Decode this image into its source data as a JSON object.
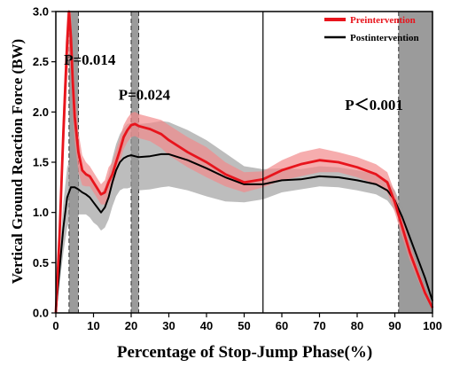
{
  "chart_data": {
    "type": "line",
    "xlabel": "Percentage of Stop-Jump Phase(%)",
    "ylabel": "Vertical Ground Reaction Force (BW)",
    "xlim": [
      0,
      100
    ],
    "ylim": [
      0,
      3.0
    ],
    "x_ticks": [
      0,
      10,
      20,
      30,
      40,
      50,
      60,
      70,
      80,
      90,
      100
    ],
    "y_ticks": [
      0.0,
      0.5,
      1.0,
      1.5,
      2.0,
      2.5,
      3.0
    ],
    "x_tick_labels": [
      "0",
      "10",
      "20",
      "30",
      "40",
      "50",
      "60",
      "70",
      "80",
      "90",
      "100"
    ],
    "y_tick_labels": [
      "0.0",
      "0.5",
      "1.0",
      "1.5",
      "2.0",
      "2.5",
      "3.0"
    ],
    "grid": false,
    "legend_position": "top-right",
    "series": [
      {
        "name": "Preintervention",
        "color": "#e8141c",
        "band_color": "#f28a8c",
        "x": [
          0,
          1,
          2,
          3,
          3.5,
          4,
          4.5,
          5,
          6,
          7,
          8,
          9,
          10,
          11,
          12,
          13,
          14,
          15,
          16,
          17,
          18,
          19,
          20,
          21,
          22,
          25,
          28,
          30,
          35,
          40,
          45,
          50,
          55,
          60,
          65,
          70,
          75,
          80,
          85,
          88,
          90,
          92,
          94,
          96,
          98,
          100
        ],
        "y": [
          0.0,
          0.8,
          1.8,
          2.7,
          3.0,
          2.75,
          2.3,
          1.95,
          1.6,
          1.42,
          1.38,
          1.36,
          1.3,
          1.24,
          1.18,
          1.2,
          1.3,
          1.38,
          1.5,
          1.62,
          1.75,
          1.82,
          1.87,
          1.88,
          1.86,
          1.83,
          1.78,
          1.72,
          1.6,
          1.5,
          1.38,
          1.3,
          1.33,
          1.42,
          1.48,
          1.52,
          1.5,
          1.45,
          1.38,
          1.3,
          1.1,
          0.85,
          0.6,
          0.4,
          0.2,
          0.05
        ],
        "band": [
          0.05,
          0.15,
          0.3,
          0.4,
          0.4,
          0.35,
          0.3,
          0.25,
          0.2,
          0.15,
          0.12,
          0.1,
          0.1,
          0.1,
          0.1,
          0.12,
          0.15,
          0.12,
          0.12,
          0.12,
          0.12,
          0.12,
          0.12,
          0.12,
          0.12,
          0.12,
          0.14,
          0.15,
          0.15,
          0.15,
          0.12,
          0.1,
          0.08,
          0.1,
          0.12,
          0.12,
          0.1,
          0.1,
          0.1,
          0.1,
          0.1,
          0.1,
          0.08,
          0.06,
          0.04,
          0.02
        ]
      },
      {
        "name": "Postintervention",
        "color": "#000000",
        "band_color": "#9a9a9a",
        "x": [
          0,
          1,
          2,
          3,
          4,
          5,
          6,
          7,
          8,
          9,
          10,
          11,
          12,
          13,
          14,
          15,
          16,
          17,
          18,
          19,
          20,
          22,
          25,
          28,
          30,
          35,
          40,
          45,
          50,
          55,
          60,
          65,
          70,
          75,
          80,
          85,
          88,
          90,
          92,
          94,
          96,
          98,
          100
        ],
        "y": [
          0.0,
          0.45,
          0.85,
          1.15,
          1.25,
          1.25,
          1.23,
          1.2,
          1.18,
          1.15,
          1.1,
          1.05,
          1.0,
          1.05,
          1.15,
          1.3,
          1.42,
          1.5,
          1.54,
          1.56,
          1.57,
          1.55,
          1.56,
          1.58,
          1.58,
          1.52,
          1.44,
          1.35,
          1.28,
          1.28,
          1.32,
          1.33,
          1.36,
          1.35,
          1.32,
          1.28,
          1.22,
          1.12,
          0.95,
          0.75,
          0.55,
          0.35,
          0.12
        ],
        "band": [
          0.05,
          0.15,
          0.25,
          0.3,
          0.3,
          0.28,
          0.25,
          0.22,
          0.2,
          0.2,
          0.2,
          0.18,
          0.18,
          0.2,
          0.22,
          0.24,
          0.26,
          0.28,
          0.3,
          0.32,
          0.32,
          0.33,
          0.33,
          0.33,
          0.32,
          0.3,
          0.28,
          0.24,
          0.18,
          0.15,
          0.12,
          0.1,
          0.1,
          0.1,
          0.1,
          0.1,
          0.1,
          0.1,
          0.1,
          0.1,
          0.08,
          0.06,
          0.04
        ]
      }
    ],
    "significance_regions": [
      {
        "x0": 3.5,
        "x1": 6
      },
      {
        "x0": 20,
        "x1": 22
      },
      {
        "x0": 91,
        "x1": 100
      }
    ],
    "vertical_lines": [
      55
    ],
    "annotations": [
      {
        "text": "P=0.014",
        "x": 9,
        "y": 2.47
      },
      {
        "text": "P=0.024",
        "x": 23.5,
        "y": 2.12
      },
      {
        "text": "P＜0.001",
        "x": 84.5,
        "y": 2.02
      }
    ]
  }
}
